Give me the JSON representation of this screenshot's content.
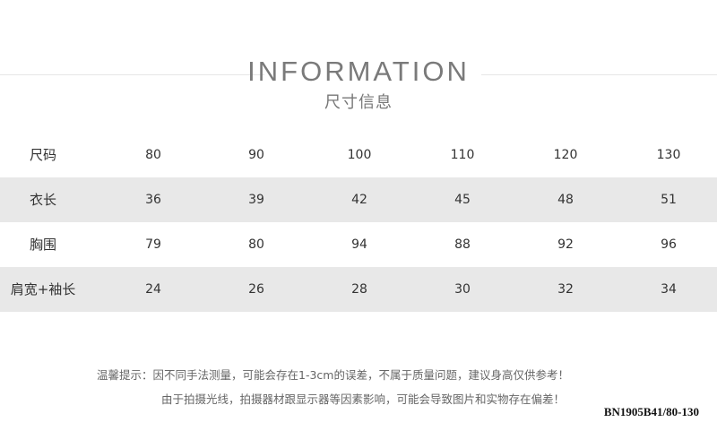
{
  "header": {
    "title": "INFORMATION",
    "subtitle": "尺寸信息"
  },
  "table": {
    "rows": [
      {
        "label": "尺码",
        "values": [
          "80",
          "90",
          "100",
          "110",
          "120",
          "130"
        ]
      },
      {
        "label": "衣长",
        "values": [
          "36",
          "39",
          "42",
          "45",
          "48",
          "51"
        ]
      },
      {
        "label": "胸围",
        "values": [
          "79",
          "80",
          "94",
          "88",
          "92",
          "96"
        ]
      },
      {
        "label": "肩宽+袖长",
        "values": [
          "24",
          "26",
          "28",
          "30",
          "32",
          "34"
        ]
      }
    ]
  },
  "notes": {
    "line1": "温馨提示：因不同手法测量，可能会存在1-3cm的误差，不属于质量问题，建议身高仅供参考！",
    "line2": "由于拍摄光线，拍摄器材跟显示器等因素影响，可能会导致图片和实物存在偏差！",
    "product_code": "BN1905B41/80-130"
  },
  "colors": {
    "stripe": "#e8e8e8",
    "title": "#7a7a7a"
  }
}
